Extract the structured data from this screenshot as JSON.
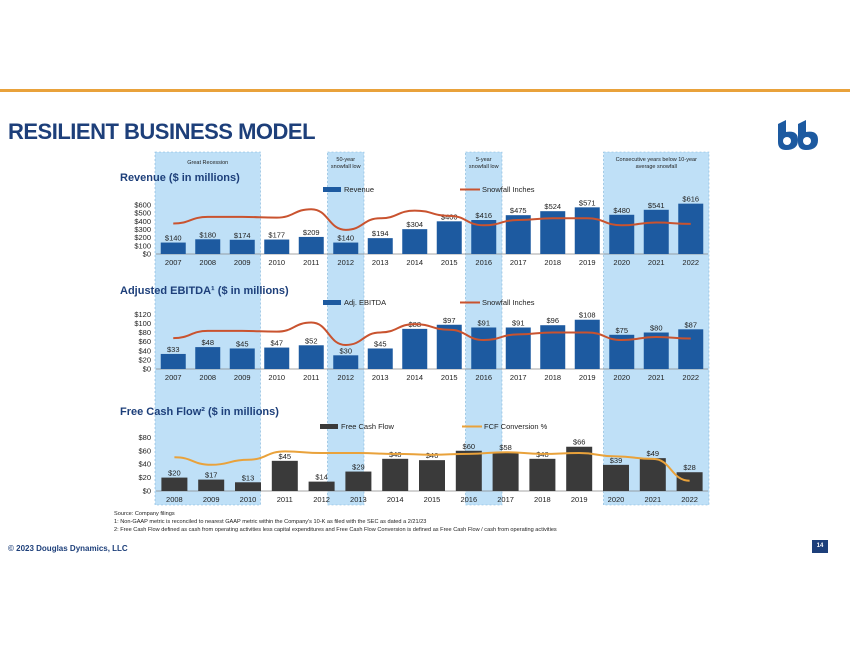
{
  "title": "RESILIENT BUSINESS MODEL",
  "footer": "© 2023 Douglas Dynamics, LLC",
  "page_number": "14",
  "colors": {
    "accent_bar": "#e9a23b",
    "brand": "#1d3f7a",
    "bar_blue": "#1d5aa0",
    "bar_dark": "#3a3a3a",
    "snow_line": "#c9532f",
    "fcf_line": "#e9a23b",
    "shade": "#bfe0f7"
  },
  "shaded_periods": [
    {
      "label": "Great Recession",
      "start": "2007",
      "end": "2009"
    },
    {
      "label": "50-year snowfall low",
      "start": "2012",
      "end": "2012"
    },
    {
      "label": "5-year snowfall low",
      "start": "2016",
      "end": "2016"
    },
    {
      "label": "Consecutive years below 10-year average snowfall",
      "start": "2020",
      "end": "2022"
    }
  ],
  "notes": [
    "Source: Company filings",
    "1: Non-GAAP metric is reconciled to nearest GAAP metric within the Company's 10-K as filed with the SEC as dated a 2/21/23",
    "2: Free Cash Flow defined as cash from operating activities less capital expenditures and Free Cash Flow Conversion is defined as Free Cash Flow / cash from operating activities"
  ],
  "chart_data": [
    {
      "type": "bar",
      "title": "Revenue ($ in millions)",
      "categories": [
        "2007",
        "2008",
        "2009",
        "2010",
        "2011",
        "2012",
        "2013",
        "2014",
        "2015",
        "2016",
        "2017",
        "2018",
        "2019",
        "2020",
        "2021",
        "2022"
      ],
      "series": [
        {
          "name": "Revenue",
          "type": "bar",
          "values": [
            140,
            180,
            174,
            177,
            209,
            140,
            194,
            304,
            400,
            416,
            475,
            524,
            571,
            480,
            541,
            616
          ],
          "labels": [
            "$140",
            "$180",
            "$174",
            "$177",
            "$209",
            "$140",
            "$194",
            "$304",
            "$400",
            "$416",
            "$475",
            "$524",
            "$571",
            "$480",
            "$541",
            "$616"
          ]
        },
        {
          "name": "Snowfall Inches",
          "type": "line",
          "values": [
            0.47,
            0.66,
            0.66,
            0.64,
            0.88,
            0.29,
            0.62,
            0.84,
            0.69,
            0.42,
            0.57,
            0.62,
            0.62,
            0.42,
            0.5,
            0.46
          ]
        }
      ],
      "y_ticks": [
        "$0",
        "$100",
        "$200",
        "$300",
        "$400",
        "$500",
        "$600"
      ],
      "ylim": [
        0,
        700
      ]
    },
    {
      "type": "bar",
      "title": "Adjusted EBITDA¹ ($ in millions)",
      "categories": [
        "2007",
        "2008",
        "2009",
        "2010",
        "2011",
        "2012",
        "2013",
        "2014",
        "2015",
        "2016",
        "2017",
        "2018",
        "2019",
        "2020",
        "2021",
        "2022"
      ],
      "series": [
        {
          "name": "Adj. EBITDA",
          "type": "bar",
          "values": [
            33,
            48,
            45,
            47,
            52,
            30,
            45,
            88,
            97,
            91,
            91,
            96,
            108,
            75,
            80,
            87
          ],
          "labels": [
            "$33",
            "$48",
            "$45",
            "$47",
            "$52",
            "$30",
            "$45",
            "$88",
            "$97",
            "$91",
            "$91",
            "$96",
            "$108",
            "$75",
            "$80",
            "$87"
          ]
        },
        {
          "name": "Snowfall Inches",
          "type": "line",
          "values": [
            0.47,
            0.66,
            0.66,
            0.64,
            0.88,
            0.29,
            0.62,
            0.84,
            0.69,
            0.42,
            0.57,
            0.62,
            0.62,
            0.42,
            0.5,
            0.46
          ]
        }
      ],
      "y_ticks": [
        "$0",
        "$20",
        "$40",
        "$60",
        "$80",
        "$100",
        "$120"
      ],
      "ylim": [
        0,
        130
      ]
    },
    {
      "type": "bar",
      "title": "Free Cash Flow² ($ in millions)",
      "categories": [
        "2008",
        "2009",
        "2010",
        "2011",
        "2012",
        "2013",
        "2014",
        "2015",
        "2016",
        "2017",
        "2018",
        "2019",
        "2020",
        "2021",
        "2022"
      ],
      "series": [
        {
          "name": "Free Cash Flow",
          "type": "bar",
          "values": [
            20,
            17,
            13,
            45,
            14,
            29,
            48,
            46,
            60,
            58,
            48,
            66,
            39,
            49,
            28
          ],
          "labels": [
            "$20",
            "$17",
            "$13",
            "$45",
            "$14",
            "$29",
            "$48",
            "$46",
            "$60",
            "$58",
            "$48",
            "$66",
            "$39",
            "$49",
            "$28"
          ]
        },
        {
          "name": "FCF Conversion %",
          "type": "line",
          "values": [
            0.78,
            0.6,
            0.72,
            0.92,
            0.88,
            0.88,
            0.86,
            0.84,
            0.86,
            0.9,
            0.86,
            0.88,
            0.8,
            0.74,
            0.22
          ]
        }
      ],
      "y_ticks": [
        "$0",
        "$20",
        "$40",
        "$60",
        "$80"
      ],
      "ylim": [
        0,
        85
      ]
    }
  ]
}
